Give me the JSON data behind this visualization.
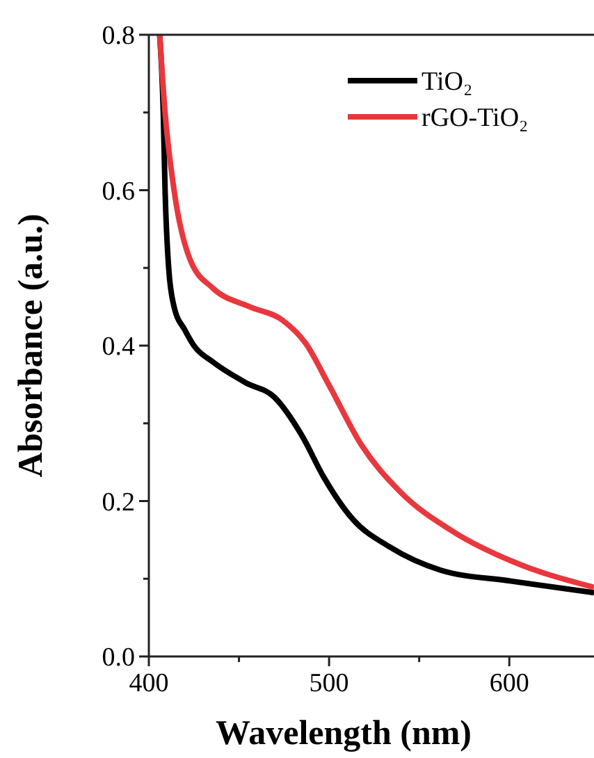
{
  "chart_data": {
    "type": "line",
    "xlabel": "Wavelength (nm)",
    "ylabel": "Absorbance (a.u.)",
    "xlim": [
      400,
      647
    ],
    "xticks": [
      400,
      {
        "value": 450,
        "label": null
      },
      500,
      {
        "value": 550,
        "label": null
      },
      600
    ],
    "ylim": [
      0,
      0.8
    ],
    "yticks": [
      "0.0",
      {
        "value": 0.1,
        "label": null
      },
      0.2,
      {
        "value": 0.3,
        "label": null
      },
      0.4,
      {
        "value": 0.5,
        "label": null
      },
      0.6,
      {
        "value": 0.7,
        "label": null
      },
      0.8
    ],
    "legend": "top right",
    "grid": false,
    "line_style": "solid",
    "marker": "none",
    "series": [
      {
        "name": "TiO₂",
        "color": "#000000",
        "x": [
          406,
          408,
          409,
          411,
          414,
          420,
          425,
          435.5,
          454,
          469.5,
          485,
          497,
          513,
          533.6,
          562,
          601,
          647
        ],
        "values": [
          0.8,
          0.7,
          0.6,
          0.5,
          0.45,
          0.42,
          0.4,
          0.379,
          0.352,
          0.334,
          0.284,
          0.231,
          0.177,
          0.141,
          0.111,
          0.097,
          0.082
        ]
      },
      {
        "name": "rGO-TiO₂",
        "color": "#e8383d",
        "x": [
          406,
          409,
          414,
          423,
          435.5,
          456,
          474,
          487,
          500,
          518,
          539,
          570,
          601,
          647
        ],
        "values": [
          0.8,
          0.7,
          0.6,
          0.51,
          0.474,
          0.45,
          0.433,
          0.403,
          0.349,
          0.272,
          0.213,
          0.159,
          0.123,
          0.089
        ]
      }
    ]
  }
}
